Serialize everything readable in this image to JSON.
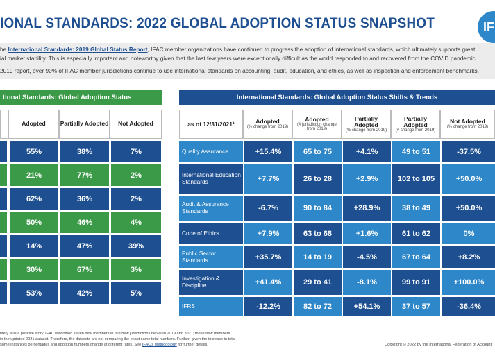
{
  "header": {
    "title": "IONAL STANDARDS: 2022 GLOBAL ADOPTION STATUS SNAPSHOT",
    "logo_text": "IF"
  },
  "intro": {
    "line1_pre": "he ",
    "line1_link": "International Standards: 2019 Global Status Report",
    "line1_post": ", IFAC member organizations have continued to progress the adoption of international standards, which ultimately supports great",
    "line2": "ial market stability. This is especially important and noteworthy given that the last few years were exceptionally difficult as the world responded to and recovered from the COVID pandemic.",
    "line3": "2019 report, over 90% of IFAC member jurisdictions continue to use international standards on accounting, audit, education, and ethics, as well as inspection and enforcement benchmarks."
  },
  "left_table": {
    "title": "tional Standards: Global Adoption Status",
    "columns": [
      "Adopted",
      "Partially Adopted",
      "Not Adopted"
    ],
    "rows": [
      [
        "55%",
        "38%",
        "7%"
      ],
      [
        "21%",
        "77%",
        "2%"
      ],
      [
        "62%",
        "36%",
        "2%"
      ],
      [
        "50%",
        "46%",
        "4%"
      ],
      [
        "14%",
        "47%",
        "39%"
      ],
      [
        "30%",
        "67%",
        "3%"
      ],
      [
        "53%",
        "42%",
        "5%"
      ]
    ]
  },
  "right_table": {
    "title": "International Standards: Global Adoption Status Shifts & Trends",
    "as_of": "as of 12/31/2021¹",
    "columns": [
      {
        "main": "Adopted",
        "sub": "(% change from 2019)"
      },
      {
        "main": "Adopted",
        "sub": "(# jurisdiction change from 2019)"
      },
      {
        "main": "Partially Adopted",
        "sub": "(% change from 2019)"
      },
      {
        "main": "Partially Adopted",
        "sub": "(# change from 2019)"
      },
      {
        "main": "Not Adopted",
        "sub": "(% change from 2019)"
      }
    ],
    "rows": [
      {
        "label": "Quality Assurance",
        "values": [
          "+15.4%",
          "65 to 75",
          "+4.1%",
          "49 to 51",
          "-37.5%"
        ]
      },
      {
        "label": "International Education Standards",
        "values": [
          "+7.7%",
          "26 to 28",
          "+2.9%",
          "102 to 105",
          "+50.0%"
        ]
      },
      {
        "label": "Audit & Assurance Standards",
        "values": [
          "-6.7%",
          "90 to 84",
          "+28.9%",
          "38 to 49",
          "+50.0%"
        ]
      },
      {
        "label": "Code of Ethics",
        "values": [
          "+7.9%",
          "63 to 68",
          "+1.6%",
          "61 to 62",
          "0%"
        ]
      },
      {
        "label": "Public Sector Standards",
        "values": [
          "+35.7%",
          "14 to 19",
          "-4.5%",
          "67 to 64",
          "+8.2%"
        ]
      },
      {
        "label": "Investigation & Discipline",
        "values": [
          "+41.4%",
          "29 to 41",
          "-8.1%",
          "99 to 91",
          "+100.0%"
        ]
      },
      {
        "label": "IFRS",
        "values": [
          "-12.2%",
          "82 to 72",
          "+54.1%",
          "37 to 57",
          "-36.4%"
        ]
      }
    ]
  },
  "footer": {
    "note1": "tirety tells a positive story. IFAC welcomed seven new members in five new jurisdictions between 2019 and 2021; these new members",
    "note2": "in the updated 2021 dataset. Therefore, the datasets are not comparing the exact same total numbers. Further, given the increase in total",
    "note3_pre": "some instances percentages and adoption numbers change at different rates. See ",
    "note3_link": "IFAC's Methodology",
    "note3_post": " for further details.",
    "copyright": "Copyright © 2022 by the International Federation of Account"
  },
  "colors": {
    "blue_dark": "#1d4f91",
    "blue_light": "#2e87c8",
    "green": "#3a9a47"
  }
}
